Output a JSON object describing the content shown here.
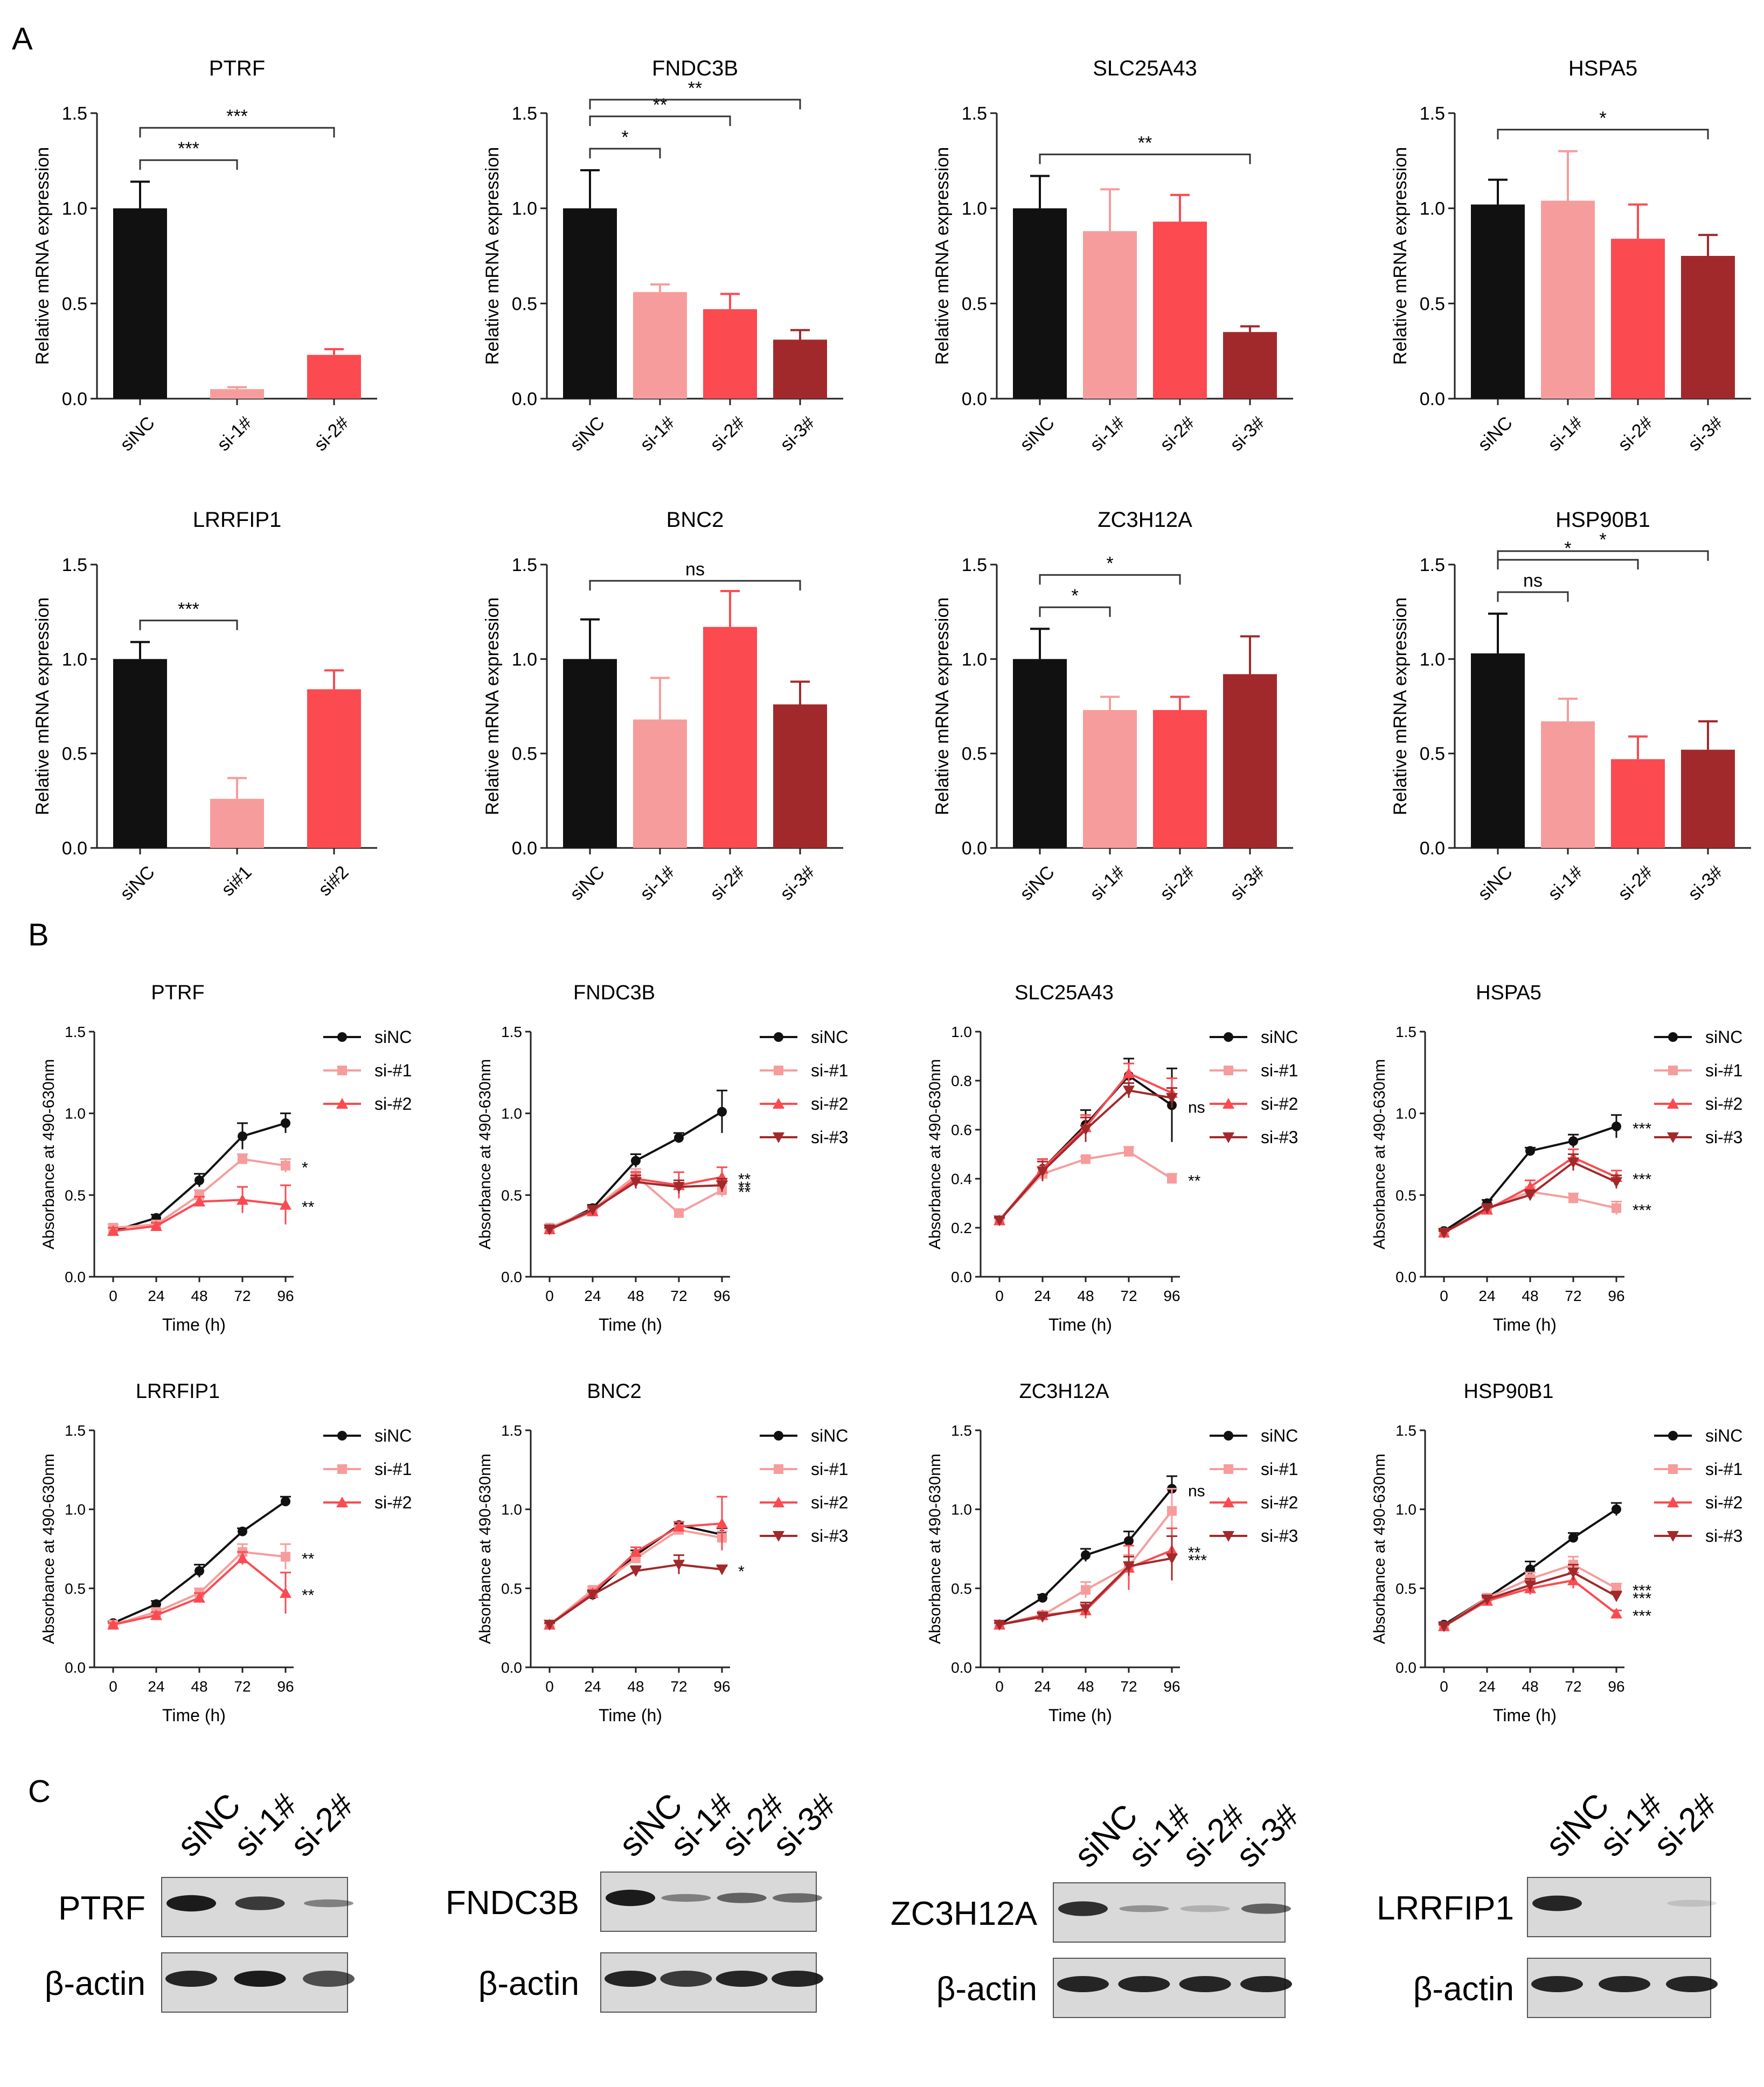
{
  "colors": {
    "siNC": "#111111",
    "si1": "#f79c9c",
    "si2": "#fb4a50",
    "si3": "#a2292b"
  },
  "panel_labels": {
    "a": "A",
    "b": "B",
    "c": "C"
  },
  "common": {
    "bar_ylabel": "Relative mRNA expression",
    "line_ylabel": "Absorbance at 490-630nm",
    "line_xlabel": "Time (h)"
  },
  "chart_data": [
    {
      "type": "bar",
      "title": "PTRF",
      "ylabel": "Relative mRNA expression",
      "ylim": [
        0,
        1.5
      ],
      "yticks": [
        "0.0",
        "0.5",
        "1.0",
        "1.5"
      ],
      "categories": [
        "siNC",
        "si-1#",
        "si-2#"
      ],
      "values": [
        1.0,
        0.05,
        0.23
      ],
      "errors": [
        0.14,
        0.01,
        0.03
      ],
      "significance": [
        {
          "from": 0,
          "to": 1,
          "label": "***"
        },
        {
          "from": 0,
          "to": 2,
          "label": "***"
        }
      ]
    },
    {
      "type": "bar",
      "title": "FNDC3B",
      "ylabel": "Relative mRNA expression",
      "ylim": [
        0,
        1.5
      ],
      "yticks": [
        "0.0",
        "0.5",
        "1.0",
        "1.5"
      ],
      "categories": [
        "siNC",
        "si-1#",
        "si-2#",
        "si-3#"
      ],
      "values": [
        1.0,
        0.56,
        0.47,
        0.31
      ],
      "errors": [
        0.2,
        0.04,
        0.08,
        0.05
      ],
      "significance": [
        {
          "from": 0,
          "to": 1,
          "label": "*"
        },
        {
          "from": 0,
          "to": 2,
          "label": "**"
        },
        {
          "from": 0,
          "to": 3,
          "label": "**"
        }
      ]
    },
    {
      "type": "bar",
      "title": "SLC25A43",
      "ylabel": "Relative mRNA expression",
      "ylim": [
        0,
        1.5
      ],
      "yticks": [
        "0.0",
        "0.5",
        "1.0",
        "1.5"
      ],
      "categories": [
        "siNC",
        "si-1#",
        "si-2#",
        "si-3#"
      ],
      "values": [
        1.0,
        0.88,
        0.93,
        0.35
      ],
      "errors": [
        0.17,
        0.22,
        0.14,
        0.03
      ],
      "significance": [
        {
          "from": 0,
          "to": 3,
          "label": "**"
        }
      ]
    },
    {
      "type": "bar",
      "title": "HSPA5",
      "ylabel": "Relative mRNA expression",
      "ylim": [
        0,
        1.5
      ],
      "yticks": [
        "0.0",
        "0.5",
        "1.0",
        "1.5"
      ],
      "categories": [
        "siNC",
        "si-1#",
        "si-2#",
        "si-3#"
      ],
      "values": [
        1.02,
        1.04,
        0.84,
        0.75
      ],
      "errors": [
        0.13,
        0.26,
        0.18,
        0.11
      ],
      "significance": [
        {
          "from": 0,
          "to": 3,
          "label": "*"
        }
      ]
    },
    {
      "type": "bar",
      "title": "LRRFIP1",
      "ylabel": "Relative mRNA expression",
      "ylim": [
        0,
        1.5
      ],
      "yticks": [
        "0.0",
        "0.5",
        "1.0",
        "1.5"
      ],
      "categories": [
        "siNC",
        "si#1",
        "si#2"
      ],
      "values": [
        1.0,
        0.26,
        0.84
      ],
      "errors": [
        0.09,
        0.11,
        0.1
      ],
      "significance": [
        {
          "from": 0,
          "to": 1,
          "label": "***"
        }
      ]
    },
    {
      "type": "bar",
      "title": "BNC2",
      "ylabel": "Relative mRNA expression",
      "ylim": [
        0,
        1.5
      ],
      "yticks": [
        "0.0",
        "0.5",
        "1.0",
        "1.5"
      ],
      "categories": [
        "siNC",
        "si-1#",
        "si-2#",
        "si-3#"
      ],
      "values": [
        1.0,
        0.68,
        1.17,
        0.76
      ],
      "errors": [
        0.21,
        0.22,
        0.19,
        0.12
      ],
      "significance": [
        {
          "from": 0,
          "to": 3,
          "label": "ns"
        }
      ]
    },
    {
      "type": "bar",
      "title": "ZC3H12A",
      "ylabel": "Relative mRNA expression",
      "ylim": [
        0,
        1.5
      ],
      "yticks": [
        "0.0",
        "0.5",
        "1.0",
        "1.5"
      ],
      "categories": [
        "siNC",
        "si-1#",
        "si-2#",
        "si-3#"
      ],
      "values": [
        1.0,
        0.73,
        0.73,
        0.92
      ],
      "errors": [
        0.16,
        0.07,
        0.07,
        0.2
      ],
      "significance": [
        {
          "from": 0,
          "to": 1,
          "label": "*"
        },
        {
          "from": 0,
          "to": 2,
          "label": "*"
        }
      ]
    },
    {
      "type": "bar",
      "title": "HSP90B1",
      "ylabel": "Relative mRNA expression",
      "ylim": [
        0,
        1.5
      ],
      "yticks": [
        "0.0",
        "0.5",
        "1.0",
        "1.5"
      ],
      "categories": [
        "siNC",
        "si-1#",
        "si-2#",
        "si-3#"
      ],
      "values": [
        1.03,
        0.67,
        0.47,
        0.52
      ],
      "errors": [
        0.21,
        0.12,
        0.12,
        0.15
      ],
      "significance": [
        {
          "from": 0,
          "to": 1,
          "label": "ns"
        },
        {
          "from": 0,
          "to": 2,
          "label": "*"
        },
        {
          "from": 0,
          "to": 3,
          "label": "*"
        }
      ]
    },
    {
      "type": "line",
      "title": "PTRF",
      "xlabel": "Time (h)",
      "ylabel": "Absorbance at 490-630nm",
      "x": [
        0,
        24,
        48,
        72,
        96
      ],
      "ylim": [
        0,
        1.5
      ],
      "yticks": [
        "0.0",
        "0.5",
        "1.0",
        "1.5"
      ],
      "series": [
        {
          "name": "siNC",
          "values": [
            0.28,
            0.36,
            0.59,
            0.86,
            0.94
          ],
          "errors": [
            0.02,
            0.02,
            0.04,
            0.08,
            0.06
          ],
          "sig": ""
        },
        {
          "name": "si-#1",
          "values": [
            0.3,
            0.32,
            0.5,
            0.72,
            0.68
          ],
          "errors": [
            0.02,
            0.02,
            0.03,
            0.03,
            0.04
          ],
          "sig": "*"
        },
        {
          "name": "si-#2",
          "values": [
            0.28,
            0.31,
            0.46,
            0.47,
            0.44
          ],
          "errors": [
            0.02,
            0.02,
            0.03,
            0.08,
            0.12
          ],
          "sig": "**"
        }
      ]
    },
    {
      "type": "line",
      "title": "FNDC3B",
      "xlabel": "Time (h)",
      "ylabel": "Absorbance at 490-630nm",
      "x": [
        0,
        24,
        48,
        72,
        96
      ],
      "ylim": [
        0,
        1.5
      ],
      "yticks": [
        "0.0",
        "0.5",
        "1.0",
        "1.5"
      ],
      "series": [
        {
          "name": "siNC",
          "values": [
            0.29,
            0.42,
            0.71,
            0.85,
            1.01
          ],
          "errors": [
            0.01,
            0.02,
            0.04,
            0.03,
            0.13
          ],
          "sig": ""
        },
        {
          "name": "si-#1",
          "values": [
            0.3,
            0.41,
            0.62,
            0.39,
            0.53
          ],
          "errors": [
            0.01,
            0.02,
            0.04,
            0.02,
            0.04
          ],
          "sig": "**"
        },
        {
          "name": "si-#2",
          "values": [
            0.29,
            0.4,
            0.6,
            0.56,
            0.61
          ],
          "errors": [
            0.01,
            0.02,
            0.04,
            0.08,
            0.06
          ],
          "sig": "**"
        },
        {
          "name": "si-#3",
          "values": [
            0.29,
            0.41,
            0.58,
            0.55,
            0.56
          ],
          "errors": [
            0.01,
            0.02,
            0.04,
            0.04,
            0.04
          ],
          "sig": "**"
        }
      ]
    },
    {
      "type": "line",
      "title": "SLC25A43",
      "xlabel": "Time (h)",
      "ylabel": "Absorbance at 490-630nm",
      "x": [
        0,
        24,
        48,
        72,
        96
      ],
      "ylim": [
        0,
        1.0
      ],
      "yticks": [
        "0.0",
        "0.2",
        "0.4",
        "0.6",
        "0.8",
        "1.0"
      ],
      "series": [
        {
          "name": "siNC",
          "values": [
            0.23,
            0.44,
            0.62,
            0.82,
            0.7
          ],
          "errors": [
            0.01,
            0.04,
            0.06,
            0.07,
            0.15
          ],
          "sig": "ns"
        },
        {
          "name": "si-#1",
          "values": [
            0.23,
            0.42,
            0.48,
            0.51,
            0.4
          ],
          "errors": [
            0.01,
            0.03,
            0.01,
            0.02,
            0.02
          ],
          "sig": "**"
        },
        {
          "name": "si-#2",
          "values": [
            0.23,
            0.44,
            0.61,
            0.83,
            0.75
          ],
          "errors": [
            0.01,
            0.04,
            0.05,
            0.04,
            0.06
          ],
          "sig": ""
        },
        {
          "name": "si-#3",
          "values": [
            0.23,
            0.43,
            0.6,
            0.76,
            0.73
          ],
          "errors": [
            0.01,
            0.04,
            0.05,
            0.03,
            0.04
          ],
          "sig": ""
        }
      ]
    },
    {
      "type": "line",
      "title": "HSPA5",
      "xlabel": "Time (h)",
      "ylabel": "Absorbance at 490-630nm",
      "x": [
        0,
        24,
        48,
        72,
        96
      ],
      "ylim": [
        0,
        1.5
      ],
      "yticks": [
        "0.0",
        "0.5",
        "1.0",
        "1.5"
      ],
      "series": [
        {
          "name": "siNC",
          "values": [
            0.28,
            0.45,
            0.77,
            0.83,
            0.92
          ],
          "errors": [
            0.01,
            0.02,
            0.02,
            0.04,
            0.07
          ],
          "sig": "***"
        },
        {
          "name": "si-#1",
          "values": [
            0.27,
            0.42,
            0.52,
            0.48,
            0.42
          ],
          "errors": [
            0.01,
            0.02,
            0.03,
            0.03,
            0.04
          ],
          "sig": "***"
        },
        {
          "name": "si-#2",
          "values": [
            0.27,
            0.41,
            0.55,
            0.73,
            0.61
          ],
          "errors": [
            0.01,
            0.02,
            0.04,
            0.05,
            0.04
          ],
          "sig": "***"
        },
        {
          "name": "si-#3",
          "values": [
            0.27,
            0.42,
            0.5,
            0.7,
            0.58
          ],
          "errors": [
            0.01,
            0.02,
            0.03,
            0.05,
            0.04
          ],
          "sig": ""
        }
      ]
    },
    {
      "type": "line",
      "title": "LRRFIP1",
      "xlabel": "Time (h)",
      "ylabel": "Absorbance at 490-630nm",
      "x": [
        0,
        24,
        48,
        72,
        96
      ],
      "ylim": [
        0,
        1.5
      ],
      "yticks": [
        "0.0",
        "0.5",
        "1.0",
        "1.5"
      ],
      "series": [
        {
          "name": "siNC",
          "values": [
            0.28,
            0.4,
            0.61,
            0.86,
            1.05
          ],
          "errors": [
            0.01,
            0.02,
            0.04,
            0.02,
            0.03
          ],
          "sig": ""
        },
        {
          "name": "si-#1",
          "values": [
            0.27,
            0.35,
            0.47,
            0.73,
            0.7
          ],
          "errors": [
            0.01,
            0.02,
            0.03,
            0.05,
            0.08
          ],
          "sig": "**"
        },
        {
          "name": "si-#2",
          "values": [
            0.27,
            0.33,
            0.44,
            0.69,
            0.47
          ],
          "errors": [
            0.01,
            0.02,
            0.03,
            0.04,
            0.13
          ],
          "sig": "**"
        }
      ]
    },
    {
      "type": "line",
      "title": "BNC2",
      "xlabel": "Time (h)",
      "ylabel": "Absorbance at 490-630nm",
      "x": [
        0,
        24,
        48,
        72,
        96
      ],
      "ylim": [
        0,
        1.5
      ],
      "yticks": [
        "0.0",
        "0.5",
        "1.0",
        "1.5"
      ],
      "series": [
        {
          "name": "siNC",
          "values": [
            0.27,
            0.46,
            0.71,
            0.9,
            0.84
          ],
          "errors": [
            0.01,
            0.02,
            0.03,
            0.02,
            0.04
          ],
          "sig": ""
        },
        {
          "name": "si-#1",
          "values": [
            0.27,
            0.49,
            0.69,
            0.87,
            0.82
          ],
          "errors": [
            0.01,
            0.02,
            0.03,
            0.03,
            0.04
          ],
          "sig": ""
        },
        {
          "name": "si-#2",
          "values": [
            0.27,
            0.47,
            0.73,
            0.89,
            0.91
          ],
          "errors": [
            0.01,
            0.02,
            0.03,
            0.03,
            0.17
          ],
          "sig": ""
        },
        {
          "name": "si-#3",
          "values": [
            0.27,
            0.46,
            0.61,
            0.65,
            0.62
          ],
          "errors": [
            0.01,
            0.02,
            0.03,
            0.06,
            0.02
          ],
          "sig": "*"
        }
      ]
    },
    {
      "type": "line",
      "title": "ZC3H12A",
      "xlabel": "Time (h)",
      "ylabel": "Absorbance at 490-630nm",
      "x": [
        0,
        24,
        48,
        72,
        96
      ],
      "ylim": [
        0,
        1.5
      ],
      "yticks": [
        "0.0",
        "0.5",
        "1.0",
        "1.5"
      ],
      "series": [
        {
          "name": "siNC",
          "values": [
            0.27,
            0.44,
            0.71,
            0.8,
            1.13
          ],
          "errors": [
            0.01,
            0.02,
            0.04,
            0.06,
            0.08
          ],
          "sig": "ns"
        },
        {
          "name": "si-#1",
          "values": [
            0.27,
            0.33,
            0.49,
            0.64,
            0.99
          ],
          "errors": [
            0.01,
            0.02,
            0.05,
            0.07,
            0.14
          ],
          "sig": ""
        },
        {
          "name": "si-#2",
          "values": [
            0.27,
            0.33,
            0.36,
            0.63,
            0.74
          ],
          "errors": [
            0.01,
            0.02,
            0.05,
            0.14,
            0.14
          ],
          "sig": "**"
        },
        {
          "name": "si-#3",
          "values": [
            0.27,
            0.32,
            0.37,
            0.64,
            0.69
          ],
          "errors": [
            0.01,
            0.02,
            0.04,
            0.06,
            0.14
          ],
          "sig": "***"
        }
      ]
    },
    {
      "type": "line",
      "title": "HSP90B1",
      "xlabel": "Time (h)",
      "ylabel": "Absorbance at 490-630nm",
      "x": [
        0,
        24,
        48,
        72,
        96
      ],
      "ylim": [
        0,
        1.5
      ],
      "yticks": [
        "0.0",
        "0.5",
        "1.0",
        "1.5"
      ],
      "series": [
        {
          "name": "siNC",
          "values": [
            0.27,
            0.44,
            0.62,
            0.82,
            1.0
          ],
          "errors": [
            0.01,
            0.02,
            0.05,
            0.03,
            0.04
          ],
          "sig": ""
        },
        {
          "name": "si-#1",
          "values": [
            0.26,
            0.44,
            0.56,
            0.65,
            0.5
          ],
          "errors": [
            0.01,
            0.02,
            0.04,
            0.05,
            0.03
          ],
          "sig": "***"
        },
        {
          "name": "si-#2",
          "values": [
            0.26,
            0.42,
            0.5,
            0.55,
            0.34
          ],
          "errors": [
            0.01,
            0.02,
            0.04,
            0.05,
            0.02
          ],
          "sig": "***"
        },
        {
          "name": "si-#3",
          "values": [
            0.26,
            0.43,
            0.52,
            0.6,
            0.45
          ],
          "errors": [
            0.01,
            0.02,
            0.04,
            0.05,
            0.03
          ],
          "sig": "***"
        }
      ]
    }
  ],
  "blots": [
    {
      "target": "PTRF",
      "loading": "β-actin",
      "lanes": [
        "siNC",
        "si-1#",
        "si-2#"
      ],
      "target_intensity": [
        0.95,
        0.8,
        0.45
      ],
      "actin_intensity": [
        0.9,
        0.95,
        0.7
      ]
    },
    {
      "target": "FNDC3B",
      "loading": "β-actin",
      "lanes": [
        "siNC",
        "si-1#",
        "si-2#",
        "si-3#"
      ],
      "target_intensity": [
        0.95,
        0.45,
        0.6,
        0.55
      ],
      "actin_intensity": [
        0.9,
        0.8,
        0.9,
        0.9
      ]
    },
    {
      "target": "ZC3H12A",
      "loading": "β-actin",
      "lanes": [
        "siNC",
        "si-1#",
        "si-2#",
        "si-3#"
      ],
      "target_intensity": [
        0.85,
        0.35,
        0.2,
        0.6
      ],
      "actin_intensity": [
        0.9,
        0.9,
        0.9,
        0.9
      ]
    },
    {
      "target": "LRRFIP1",
      "loading": "β-actin",
      "lanes": [
        "siNC",
        "si-1#",
        "si-2#"
      ],
      "target_intensity": [
        0.9,
        0.0,
        0.12
      ],
      "actin_intensity": [
        0.9,
        0.9,
        0.9
      ]
    }
  ]
}
